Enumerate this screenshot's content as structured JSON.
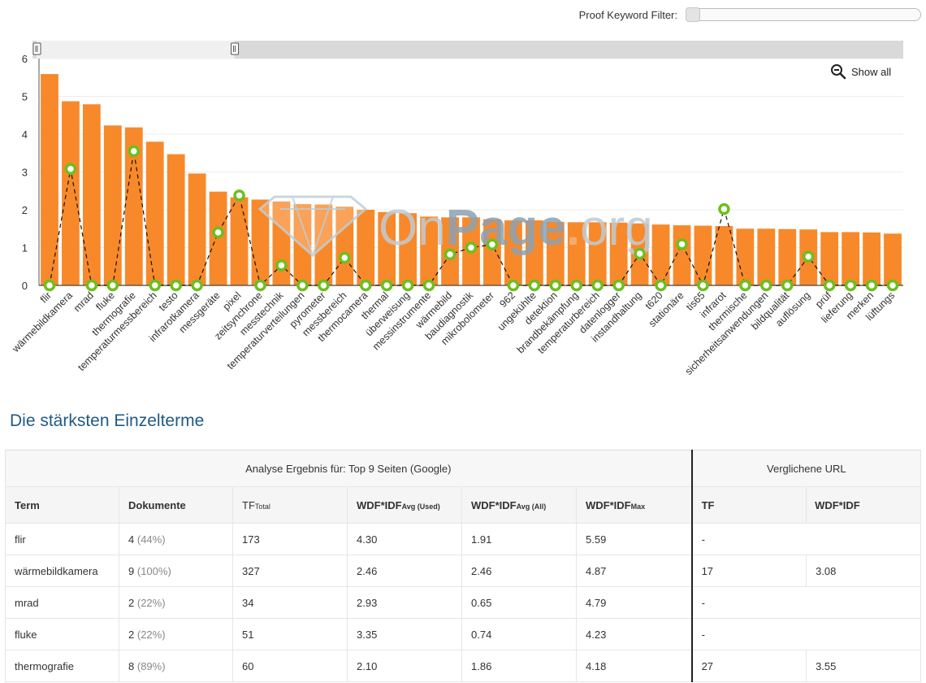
{
  "filter": {
    "label": "Proof Keyword Filter:",
    "value": 0
  },
  "show_all": "Show all",
  "watermark": {
    "on": "On",
    "page": "Page",
    "dot": ".",
    "org": "org"
  },
  "chart_data": {
    "type": "bar",
    "ylim": [
      0,
      6
    ],
    "yticks": [
      0,
      1,
      2,
      3,
      4,
      5,
      6
    ],
    "categories": [
      "flir",
      "wärmebildkamera",
      "mrad",
      "fluke",
      "thermografie",
      "temperaturmessbereich",
      "testo",
      "infrarotkamera",
      "messgeräte",
      "pixel",
      "zeitsynchrone",
      "messtechnik",
      "temperaturverteilungen",
      "pyrometer",
      "messbereich",
      "thermocamera",
      "thermal",
      "überweisung",
      "messinstrumente",
      "wärmebild",
      "baudiagnostik",
      "mikrobolometer",
      "962",
      "ungekühlte",
      "detektion",
      "brandbekämpfung",
      "temperaturbereich",
      "datenlogger",
      "instandhaltung",
      "t620",
      "stationäre",
      "tis65",
      "infrarot",
      "thermische",
      "sicherheitsanwendungen",
      "bildqualität",
      "auflösung",
      "prüf",
      "lieferung",
      "merken",
      "lüftungs"
    ],
    "series": [
      {
        "name": "WDF*IDF Max",
        "type": "bar",
        "color": "#f7892b",
        "values": [
          5.59,
          4.87,
          4.79,
          4.23,
          4.18,
          3.8,
          3.47,
          2.96,
          2.48,
          2.33,
          2.27,
          2.22,
          2.15,
          2.14,
          2.08,
          2.0,
          1.94,
          1.91,
          1.82,
          1.8,
          1.8,
          1.75,
          1.72,
          1.72,
          1.68,
          1.67,
          1.67,
          1.66,
          1.64,
          1.61,
          1.59,
          1.58,
          1.57,
          1.5,
          1.5,
          1.49,
          1.48,
          1.41,
          1.41,
          1.4,
          1.37
        ]
      },
      {
        "name": "Verglichene URL WDF*IDF",
        "type": "line",
        "color": "#6cbf1c",
        "dash": true,
        "values": [
          0,
          3.08,
          0,
          0,
          3.55,
          0,
          0,
          0,
          1.4,
          2.38,
          0,
          0.53,
          0,
          0,
          0.73,
          0,
          0,
          0,
          0,
          0.82,
          1.0,
          1.08,
          0,
          0,
          0,
          0,
          0,
          0,
          0.84,
          0,
          1.09,
          0,
          2.02,
          0,
          0,
          0,
          0.76,
          0,
          0,
          0,
          0
        ]
      }
    ],
    "range_selector": {
      "start": 0,
      "end": 9
    }
  },
  "section_title": "Die stärksten Einzelterme",
  "table": {
    "group_left": "Analyse Ergebnis für: Top 9 Seiten (Google)",
    "group_right": "Verglichene URL",
    "headers": {
      "term": "Term",
      "docs": "Dokumente",
      "tf_total": {
        "main": "TF",
        "sub": "Total"
      },
      "wdf_avg_used": {
        "main": "WDF*IDF",
        "sub": "Avg (Used)"
      },
      "wdf_avg_all": {
        "main": "WDF*IDF",
        "sub": "Avg (All)"
      },
      "wdf_max": {
        "main": "WDF*IDF",
        "sub": "Max"
      },
      "tf": "TF",
      "wdf": "WDF*IDF"
    },
    "rows": [
      {
        "term": "flir",
        "docs": "4",
        "pct": "(44%)",
        "tf_total": "173",
        "avg_used": "4.30",
        "avg_all": "1.91",
        "max": "5.59",
        "tf": "-",
        "wdf": ""
      },
      {
        "term": "wärmebildkamera",
        "docs": "9",
        "pct": "(100%)",
        "tf_total": "327",
        "avg_used": "2.46",
        "avg_all": "2.46",
        "max": "4.87",
        "tf": "17",
        "wdf": "3.08"
      },
      {
        "term": "mrad",
        "docs": "2",
        "pct": "(22%)",
        "tf_total": "34",
        "avg_used": "2.93",
        "avg_all": "0.65",
        "max": "4.79",
        "tf": "-",
        "wdf": ""
      },
      {
        "term": "fluke",
        "docs": "2",
        "pct": "(22%)",
        "tf_total": "51",
        "avg_used": "3.35",
        "avg_all": "0.74",
        "max": "4.23",
        "tf": "-",
        "wdf": ""
      },
      {
        "term": "thermografie",
        "docs": "8",
        "pct": "(89%)",
        "tf_total": "60",
        "avg_used": "2.10",
        "avg_all": "1.86",
        "max": "4.18",
        "tf": "27",
        "wdf": "3.55"
      }
    ]
  }
}
